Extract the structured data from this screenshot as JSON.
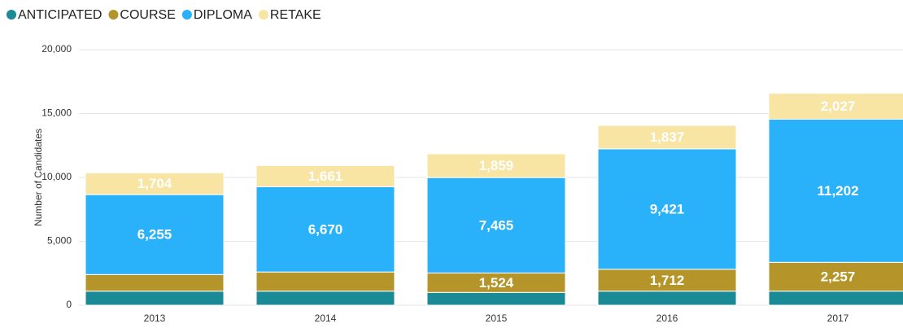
{
  "chart_data": {
    "type": "stacked_bar",
    "y_axis_label": "Number of Candidates",
    "categories": [
      "2013",
      "2014",
      "2015",
      "2016",
      "2017"
    ],
    "series": [
      {
        "name": "ANTICIPATED",
        "color": "#1a8a96",
        "values": [
          1100,
          1100,
          1000,
          1100,
          1100
        ],
        "value_labels": [
          null,
          null,
          null,
          null,
          null
        ]
      },
      {
        "name": "COURSE",
        "color": "#b5952a",
        "values": [
          1300,
          1500,
          1524,
          1712,
          2257
        ],
        "value_labels": [
          null,
          null,
          "1,524",
          "1,712",
          "2,257"
        ]
      },
      {
        "name": "DIPLOMA",
        "color": "#29b1f9",
        "values": [
          6255,
          6670,
          7465,
          9421,
          11202
        ],
        "value_labels": [
          "6,255",
          "6,670",
          "7,465",
          "9,421",
          "11,202"
        ]
      },
      {
        "name": "RETAKE",
        "color": "#f8e5a4",
        "values": [
          1704,
          1661,
          1859,
          1837,
          2027
        ],
        "value_labels": [
          "1,704",
          "1,661",
          "1,859",
          "1,837",
          "2,027"
        ]
      }
    ],
    "ylim": [
      0,
      20000
    ],
    "yticks": [
      0,
      {
        "value": 5000,
        "label": "5,000"
      },
      {
        "value": 10000,
        "label": "10,000"
      },
      {
        "value": 15000,
        "label": "15,000"
      },
      {
        "value": 20000,
        "label": "20,000"
      }
    ],
    "grid": true,
    "legend": "top-left"
  }
}
